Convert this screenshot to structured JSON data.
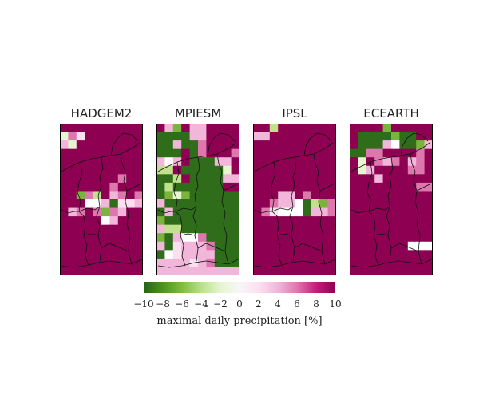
{
  "panels": [
    {
      "title": "HADGEM2",
      "grid": [
        "0000000000",
        "DEG0000000",
        "FD00000000",
        "0000000000",
        "0000000000",
        "0000000000",
        "0000000E00",
        "000000E000",
        "00BEC0FE0E",
        "000HHFAGGF",
        "0FE0EBEF00",
        "00000HF000",
        "0000000000",
        "0000000000",
        "0000000000",
        "0000000000",
        "0000000000",
        "0000000000"
      ]
    },
    {
      "title": "MPIESM",
      "grid": [
        "0FB0FF0000",
        "AAAAFF0000",
        "AAFAAE0000",
        "AAA0AE000E",
        "FHF0AAAFF0",
        "CC0AAAAAD0",
        "AAC0AAAAFF",
        "ACAAAAAA00",
        "ABDBAAAAAA",
        "FAAAAAAAAA",
        "AFAAAAAAAA",
        "BAAAAAAAAA",
        "FCCAAAAAAA",
        "BAFHHEAAAA",
        "FAGFFFEAAA",
        "AHGFFFFAAA",
        "FFFFGFEAAA",
        "FFFFFFFFFF"
      ]
    },
    {
      "title": "IPSL",
      "grid": [
        "00C0000000",
        "FF00000000",
        "0000000000",
        "0000000000",
        "0000000000",
        "0000000000",
        "0000000000",
        "0000000000",
        "000FF0E000",
        "00EFFHACBE",
        "0EGHHHAFFE",
        "0000000000",
        "0000000000",
        "0000000000",
        "0000000000",
        "0000000000",
        "0000000000",
        "0000000000"
      ]
    },
    {
      "title": "ECEARTH",
      "grid": [
        "0000B00000",
        "0AAAABAA00",
        "0AAAFHAABF",
        "AAEE0000E0",
        "0D0EFE0FE0",
        "0DF0000EE0",
        "000F000000",
        "00000000EE",
        "0000000000",
        "0000000000",
        "0000000000",
        "0000000000",
        "0000000000",
        "0000000000",
        "0000000HHH",
        "0000000000",
        "0000000000",
        "0000000000"
      ]
    }
  ],
  "palette": {
    "0": "#8e0152",
    "A": "#2f6d1b",
    "B": "#7ab43c",
    "C": "#c1e18d",
    "D": "#e7f5d0",
    "E": "#de77ae",
    "F": "#f1b6da",
    "G": "#fde0ef",
    "H": "#ffffff"
  },
  "colorbar": {
    "ticks": [
      "−10",
      "−8",
      "−6",
      "−4",
      "−2",
      "0",
      "2",
      "4",
      "6",
      "8",
      "10"
    ],
    "min": -10,
    "max": 10,
    "colors": [
      "#276419",
      "#4d9221",
      "#7fbc41",
      "#b8e186",
      "#e6f5d0",
      "#f7f7f7",
      "#fde0ef",
      "#f1b6da",
      "#de77ae",
      "#c51b7d",
      "#8e0152"
    ],
    "label": "maximal daily precipitation [%]"
  }
}
